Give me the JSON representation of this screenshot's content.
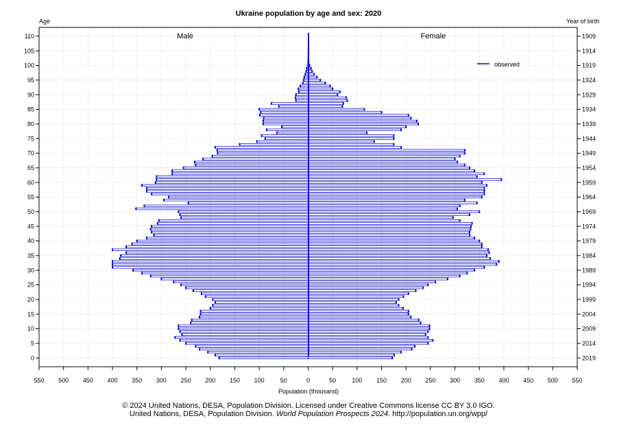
{
  "chart_data": {
    "type": "bar",
    "title": "Ukraine population by age and sex: 2020",
    "left_axis_title": "Age",
    "right_axis_title": "Year of birth",
    "xlabel": "Population (thousand)",
    "male_label": "Male",
    "female_label": "Female",
    "legend": {
      "label": "observed",
      "color": "#0000cc",
      "position": "top-right"
    },
    "bar_color": "#0000cc",
    "grid": true,
    "xlim": [
      -550,
      550
    ],
    "ylim": [
      -3,
      113
    ],
    "x_ticks": [
      "550",
      "500",
      "450",
      "400",
      "350",
      "300",
      "250",
      "200",
      "150",
      "100",
      "50",
      "0",
      "50",
      "100",
      "150",
      "200",
      "250",
      "300",
      "350",
      "400",
      "450",
      "500",
      "550"
    ],
    "age_ticks": [
      "0",
      "5",
      "10",
      "15",
      "20",
      "25",
      "30",
      "35",
      "40",
      "45",
      "50",
      "55",
      "60",
      "65",
      "70",
      "75",
      "80",
      "85",
      "90",
      "95",
      "100",
      "105",
      "110"
    ],
    "birth_year_ticks": [
      "2019",
      "2014",
      "2009",
      "2004",
      "1999",
      "1994",
      "1989",
      "1984",
      "1979",
      "1974",
      "1969",
      "1964",
      "1959",
      "1954",
      "1949",
      "1944",
      "1939",
      "1934",
      "1929",
      "1924",
      "1919",
      "1914",
      "1909"
    ],
    "ages": [
      0,
      1,
      2,
      3,
      4,
      5,
      6,
      7,
      8,
      9,
      10,
      11,
      12,
      13,
      14,
      15,
      16,
      17,
      18,
      19,
      20,
      21,
      22,
      23,
      24,
      25,
      26,
      27,
      28,
      29,
      30,
      31,
      32,
      33,
      34,
      35,
      36,
      37,
      38,
      39,
      40,
      41,
      42,
      43,
      44,
      45,
      46,
      47,
      48,
      49,
      50,
      51,
      52,
      53,
      54,
      55,
      56,
      57,
      58,
      59,
      60,
      61,
      62,
      63,
      64,
      65,
      66,
      67,
      68,
      69,
      70,
      71,
      72,
      73,
      74,
      75,
      76,
      77,
      78,
      79,
      80,
      81,
      82,
      83,
      84,
      85,
      86,
      87,
      88,
      89,
      90,
      91,
      92,
      93,
      94,
      95,
      96,
      97,
      98,
      99,
      100,
      101,
      102,
      103,
      104,
      105,
      106,
      107,
      108,
      109,
      110
    ],
    "male": [
      182,
      190,
      205,
      222,
      230,
      250,
      262,
      272,
      258,
      262,
      265,
      265,
      240,
      238,
      222,
      220,
      220,
      200,
      195,
      190,
      195,
      210,
      218,
      235,
      250,
      260,
      275,
      300,
      322,
      340,
      358,
      400,
      400,
      400,
      385,
      383,
      372,
      400,
      372,
      360,
      350,
      330,
      315,
      320,
      322,
      320,
      308,
      305,
      260,
      262,
      265,
      352,
      335,
      245,
      295,
      285,
      320,
      330,
      330,
      340,
      312,
      310,
      310,
      278,
      278,
      255,
      230,
      232,
      215,
      196,
      185,
      186,
      190,
      140,
      105,
      88,
      95,
      64,
      85,
      54,
      92,
      92,
      91,
      99,
      97,
      100,
      60,
      75,
      25,
      26,
      25,
      19,
      20,
      16,
      11,
      9,
      8,
      6,
      4,
      3,
      2,
      1,
      1,
      0.5,
      0.5,
      0.4,
      0.3,
      0.2,
      0.2,
      0.1,
      0.1
    ],
    "female": [
      172,
      176,
      190,
      212,
      218,
      245,
      255,
      245,
      240,
      245,
      248,
      248,
      230,
      226,
      210,
      205,
      205,
      194,
      185,
      180,
      185,
      195,
      205,
      220,
      235,
      245,
      260,
      285,
      310,
      325,
      340,
      360,
      385,
      390,
      372,
      365,
      370,
      368,
      355,
      355,
      350,
      340,
      330,
      330,
      332,
      333,
      335,
      310,
      296,
      330,
      350,
      305,
      310,
      345,
      320,
      355,
      360,
      360,
      360,
      365,
      355,
      395,
      345,
      360,
      340,
      330,
      320,
      305,
      300,
      310,
      320,
      320,
      190,
      175,
      135,
      175,
      175,
      120,
      190,
      200,
      225,
      222,
      210,
      205,
      150,
      115,
      70,
      72,
      80,
      78,
      60,
      65,
      50,
      45,
      35,
      25,
      18,
      12,
      8,
      6,
      3,
      2,
      1,
      1,
      0.5,
      0.4,
      0.3,
      0.2,
      0.2,
      0.1,
      0.1
    ]
  },
  "footer": {
    "line1": "© 2024 United Nations, DESA, Population Division. Licensed under Creative Commons license CC BY 3.0 IGO.",
    "line2_prefix": "United Nations, DESA, Population Division. ",
    "line2_italic": "World Population Prospects 2024",
    "line2_suffix": ". http://population.un.org/wpp/"
  }
}
